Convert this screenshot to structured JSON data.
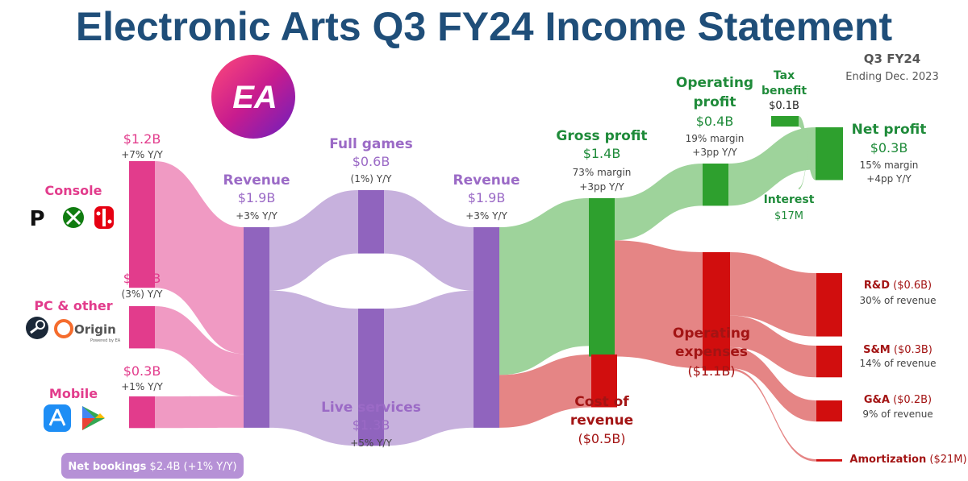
{
  "title": "Electronic Arts Q3 FY24 Income Statement",
  "period": {
    "label": "Q3 FY24",
    "sub": "Ending Dec. 2023"
  },
  "logo": {
    "text": "EA"
  },
  "net_bookings": {
    "label": "Net bookings",
    "value": "$2.4B (+1% Y/Y)"
  },
  "colors": {
    "title": "#1f4e79",
    "source": "#e23c8c",
    "source_flow": "#f09ac3",
    "revenue": "#9064be",
    "revenue_flow": "#c7b1dd",
    "revenue_text": "#9b6ac6",
    "profit": "#2ea02e",
    "profit_flow": "#9ed39b",
    "profit_text": "#1f8b3a",
    "cost": "#d10e0e",
    "cost_flow": "#e58585",
    "cost_text": "#a31414",
    "nb_box": "#b691d6"
  },
  "nodes": {
    "console": {
      "name": "Console",
      "value": "$1.2B",
      "yoy": "+7% Y/Y",
      "icons": [
        "playstation-icon",
        "xbox-icon",
        "nintendo-switch-icon"
      ]
    },
    "pc": {
      "name": "PC & other",
      "value": "$0.4B",
      "yoy": "(3%) Y/Y",
      "icons": [
        "steam-icon",
        "origin-icon"
      ],
      "origin_text": "Origin",
      "origin_sub": "Powered by EA"
    },
    "mobile": {
      "name": "Mobile",
      "value": "$0.3B",
      "yoy": "+1% Y/Y",
      "icons": [
        "app-store-icon",
        "google-play-icon"
      ]
    },
    "revenue1": {
      "name": "Revenue",
      "value": "$1.9B",
      "yoy": "+3% Y/Y"
    },
    "full_games": {
      "name": "Full games",
      "value": "$0.6B",
      "yoy": "(1%) Y/Y"
    },
    "live_services": {
      "name": "Live services",
      "value": "$1.3B",
      "yoy": "+5% Y/Y"
    },
    "revenue2": {
      "name": "Revenue",
      "value": "$1.9B",
      "yoy": "+3% Y/Y"
    },
    "gross_profit": {
      "name": "Gross profit",
      "value": "$1.4B",
      "margin": "73% margin",
      "delta": "+3pp Y/Y"
    },
    "cost_of_revenue": {
      "name_line1": "Cost of",
      "name_line2": "revenue",
      "value": "($0.5B)"
    },
    "operating_profit": {
      "name_line1": "Operating",
      "name_line2": "profit",
      "value": "$0.4B",
      "margin": "19% margin",
      "delta": "+3pp Y/Y"
    },
    "operating_expenses": {
      "name_line1": "Operating",
      "name_line2": "expenses",
      "value": "($1.1B)"
    },
    "tax_benefit": {
      "name_line1": "Tax",
      "name_line2": "benefit",
      "value": "$0.1B"
    },
    "interest": {
      "name": "Interest",
      "value": "$17M"
    },
    "net_profit": {
      "name": "Net profit",
      "value": "$0.3B",
      "margin": "15% margin",
      "delta": "+4pp Y/Y"
    },
    "rd": {
      "name": "R&D",
      "value": "($0.6B)",
      "share": "30% of revenue"
    },
    "sm": {
      "name": "S&M",
      "value": "($0.3B)",
      "share": "14% of revenue"
    },
    "ga": {
      "name": "G&A",
      "value": "($0.2B)",
      "share": "9% of revenue"
    },
    "amortization": {
      "name": "Amortization",
      "value": "($21M)"
    }
  },
  "chart_data": {
    "type": "sankey",
    "title": "Electronic Arts Q3 FY24 Income Statement",
    "units": "USD billions",
    "links": [
      {
        "source": "Console",
        "target": "Revenue",
        "value": 1.2
      },
      {
        "source": "PC & other",
        "target": "Revenue",
        "value": 0.4
      },
      {
        "source": "Mobile",
        "target": "Revenue",
        "value": 0.3
      },
      {
        "source": "Revenue",
        "target": "Full games",
        "value": 0.6
      },
      {
        "source": "Revenue",
        "target": "Live services",
        "value": 1.3
      },
      {
        "source": "Full games",
        "target": "Revenue (2)",
        "value": 0.6
      },
      {
        "source": "Live services",
        "target": "Revenue (2)",
        "value": 1.3
      },
      {
        "source": "Revenue (2)",
        "target": "Gross profit",
        "value": 1.4
      },
      {
        "source": "Revenue (2)",
        "target": "Cost of revenue",
        "value": 0.5
      },
      {
        "source": "Gross profit",
        "target": "Operating profit",
        "value": 0.4
      },
      {
        "source": "Gross profit",
        "target": "Operating expenses",
        "value": 1.1
      },
      {
        "source": "Operating profit",
        "target": "Net profit",
        "value": 0.4
      },
      {
        "source": "Tax benefit",
        "target": "Net profit",
        "value": 0.1
      },
      {
        "source": "Net profit",
        "target": "Interest",
        "value": 0.017
      },
      {
        "source": "Operating expenses",
        "target": "R&D",
        "value": 0.6
      },
      {
        "source": "Operating expenses",
        "target": "S&M",
        "value": 0.3
      },
      {
        "source": "Operating expenses",
        "target": "G&A",
        "value": 0.2
      },
      {
        "source": "Operating expenses",
        "target": "Amortization",
        "value": 0.021
      }
    ],
    "y_over_y": {
      "Console": "+7%",
      "PC & other": "(3%)",
      "Mobile": "+1%",
      "Revenue": "+3%",
      "Full games": "(1%)",
      "Live services": "+5%",
      "Net bookings": "+1%"
    },
    "margins": {
      "Gross profit": "73%",
      "Operating profit": "19%",
      "Net profit": "15%"
    },
    "margin_change": {
      "Gross profit": "+3pp",
      "Operating profit": "+3pp",
      "Net profit": "+4pp"
    },
    "share_of_revenue": {
      "R&D": "30%",
      "S&M": "14%",
      "G&A": "9%"
    }
  }
}
